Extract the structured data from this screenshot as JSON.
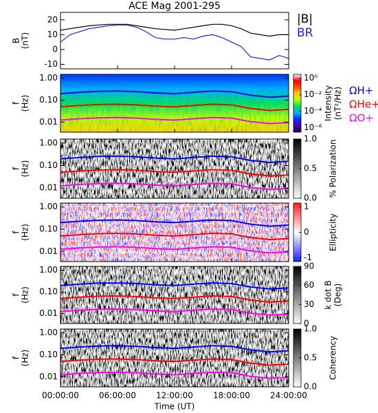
{
  "chart_data": [
    {
      "type": "line",
      "title": "ACE Mag 2001-295",
      "ylabel": [
        "B",
        "(nT)"
      ],
      "x": [
        0,
        1,
        2,
        3,
        4,
        5,
        6,
        7,
        8,
        9,
        10,
        11,
        12,
        13,
        14,
        15,
        16,
        17,
        18,
        19,
        20,
        21,
        22,
        23,
        24
      ],
      "xlim": [
        0,
        24
      ],
      "ylim": [
        -13,
        25
      ],
      "yticks": [
        -10,
        0,
        10,
        20
      ],
      "series": [
        {
          "name": "|B|",
          "color": "#000000",
          "values": [
            13,
            14,
            15,
            16,
            16.5,
            17,
            17,
            17,
            16,
            15,
            14,
            13.5,
            13,
            14,
            15,
            16,
            17,
            17,
            16,
            14,
            11,
            10,
            9,
            10,
            10
          ]
        },
        {
          "name": "BR",
          "color": "#2020e0",
          "values": [
            5,
            10,
            12,
            14,
            15,
            16,
            16.5,
            16.5,
            15,
            12,
            8,
            7,
            7,
            8,
            7,
            9,
            10,
            8,
            5,
            2,
            -5,
            -6,
            -7,
            -4,
            -6
          ]
        }
      ]
    },
    {
      "type": "spectrogram",
      "ylabel": [
        "f",
        "(Hz)"
      ],
      "ylog": true,
      "xlim": [
        0,
        24
      ],
      "ylim": [
        0.0035,
        1.5
      ],
      "yticks": [
        {
          "value": 1,
          "label": "1.00"
        },
        {
          "value": 0.1,
          "label": "0.10"
        },
        {
          "value": 0.01,
          "label": "0.01"
        }
      ],
      "colorbar": {
        "label": [
          "Intensity",
          "(nT²/Hz)"
        ],
        "log": true,
        "lim": [
          3e-07,
          3
        ],
        "ticks": [
          {
            "value": 1,
            "label": "10⁰"
          },
          {
            "value": 0.01,
            "label": "10⁻²"
          },
          {
            "value": 0.0001,
            "label": "10⁻⁴"
          },
          {
            "value": 1e-06,
            "label": "10⁻⁶"
          }
        ],
        "colors": [
          "#200040",
          "#5000b0",
          "#0030ff",
          "#00b0ff",
          "#00e060",
          "#b0ff00",
          "#ffd000",
          "#ff5000",
          "#ff0000",
          "#ffffff"
        ]
      }
    },
    {
      "type": "spectrogram",
      "ylabel": [
        "f",
        "(Hz)"
      ],
      "ylog": true,
      "xlim": [
        0,
        24
      ],
      "ylim": [
        0.0035,
        1.5
      ],
      "yticks": [
        {
          "value": 1,
          "label": "1.00"
        },
        {
          "value": 0.1,
          "label": "0.10"
        },
        {
          "value": 0.01,
          "label": "0.01"
        }
      ],
      "colorbar": {
        "label": [
          "% Polarization"
        ],
        "log": false,
        "lim": [
          0,
          1
        ],
        "ticks": [
          {
            "value": 0,
            "label": "0.0"
          },
          {
            "value": 0.5,
            "label": "0.5"
          },
          {
            "value": 1,
            "label": "1.0"
          }
        ],
        "colors": [
          "#ffffff",
          "#000000"
        ]
      }
    },
    {
      "type": "spectrogram",
      "ylabel": [
        "f",
        "(Hz)"
      ],
      "ylog": true,
      "xlim": [
        0,
        24
      ],
      "ylim": [
        0.0035,
        1.5
      ],
      "yticks": [
        {
          "value": 1,
          "label": "1.00"
        },
        {
          "value": 0.1,
          "label": "0.10"
        },
        {
          "value": 0.01,
          "label": "0.01"
        }
      ],
      "colorbar": {
        "label": [
          "Ellipticity"
        ],
        "log": false,
        "lim": [
          -1.15,
          1.15
        ],
        "ticks": [
          -1,
          0,
          1
        ],
        "colors": [
          "#2020ff",
          "#ffffff",
          "#ff2020"
        ]
      }
    },
    {
      "type": "spectrogram",
      "ylabel": [
        "f",
        "(Hz)"
      ],
      "ylog": true,
      "xlim": [
        0,
        24
      ],
      "ylim": [
        0.0035,
        1.5
      ],
      "yticks": [
        {
          "value": 1,
          "label": "1.00"
        },
        {
          "value": 0.1,
          "label": "0.10"
        },
        {
          "value": 0.01,
          "label": "0.01"
        }
      ],
      "colorbar": {
        "label": [
          "k dot B",
          "(Deg)"
        ],
        "log": false,
        "lim": [
          0,
          90
        ],
        "ticks": [
          0,
          30,
          60,
          90
        ],
        "colors": [
          "#ffffff",
          "#000000"
        ]
      }
    },
    {
      "type": "spectrogram",
      "ylabel": [
        "f",
        "(Hz)"
      ],
      "ylog": true,
      "xlim": [
        0,
        24
      ],
      "ylim": [
        0.0035,
        1.5
      ],
      "yticks": [
        {
          "value": 1,
          "label": "1.00"
        },
        {
          "value": 0.1,
          "label": "0.10"
        },
        {
          "value": 0.01,
          "label": "0.01"
        }
      ],
      "colorbar": {
        "label": [
          "Coherency"
        ],
        "log": false,
        "lim": [
          0,
          1
        ],
        "ticks": [
          {
            "value": 0,
            "label": "0.0"
          },
          {
            "value": 0.5,
            "label": "0.5"
          },
          {
            "value": 1,
            "label": "1.0"
          }
        ],
        "colors": [
          "#ffffff",
          "#000000"
        ]
      },
      "xlabel": "Time (UT)",
      "xticks": [
        {
          "value": 0,
          "label": "00:00:00"
        },
        {
          "value": 6,
          "label": "06:00:00"
        },
        {
          "value": 12,
          "label": "12:00:00"
        },
        {
          "value": 18,
          "label": "18:00:00"
        },
        {
          "value": 24,
          "label": "24:00:00"
        }
      ]
    }
  ],
  "gyrofrequencies": {
    "x": [
      0,
      2,
      4,
      6,
      8,
      10,
      12,
      14,
      16,
      18,
      20,
      22,
      24
    ],
    "series": [
      {
        "name": "ΩH+",
        "color": "#0000ff",
        "values": [
          0.198,
          0.229,
          0.252,
          0.259,
          0.244,
          0.214,
          0.198,
          0.229,
          0.259,
          0.244,
          0.168,
          0.137,
          0.153
        ]
      },
      {
        "name": "ΩHe+",
        "color": "#ff0000",
        "values": [
          0.05,
          0.057,
          0.063,
          0.065,
          0.061,
          0.053,
          0.05,
          0.057,
          0.065,
          0.061,
          0.042,
          0.034,
          0.038
        ]
      },
      {
        "name": "ΩO+",
        "color": "#ff00ff",
        "values": [
          0.0124,
          0.0143,
          0.0157,
          0.0162,
          0.0153,
          0.0134,
          0.0124,
          0.0143,
          0.0162,
          0.0153,
          0.0105,
          0.0086,
          0.0096
        ]
      }
    ]
  }
}
